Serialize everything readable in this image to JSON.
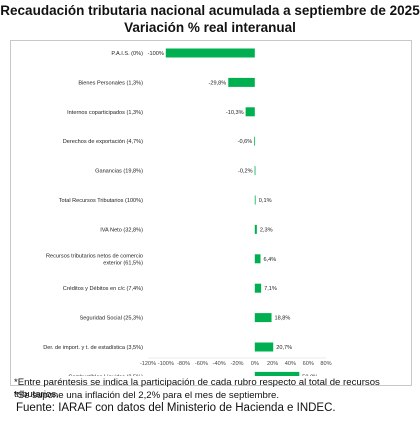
{
  "title_line1": "Recaudación tributaria nacional acumulada a septiembre de 2025",
  "title_line2": "Variación % real interanual",
  "chart_data": {
    "type": "bar",
    "orientation": "horizontal",
    "title": "Recaudación tributaria nacional acumulada a septiembre de 2025",
    "subtitle": "Variación % real interanual",
    "categories": [
      "P.A.I.S. (0%)",
      "Bienes Personales (1,3%)",
      "Internos coparticipados (1,3%)",
      "Derechos de exportación (4,7%)",
      "Ganancias (19,8%)",
      "Total Recursos Tributarios (100%)",
      "IVA Neto (32,8%)",
      "Recursos tributarios netos de comercio exterior (61,5%)",
      "Créditos y Débitos en c/c (7,4%)",
      "Seguridad Social (25,3%)",
      "Der. de import. y t. de estadística (3,5%)",
      "Combustibles Líquidos (2,5%)"
    ],
    "values": [
      -100,
      -29.8,
      -10.3,
      -0.6,
      -0.2,
      0.1,
      2.3,
      6.4,
      7.1,
      18.8,
      20.7,
      50.0
    ],
    "data_labels": [
      "-100%",
      "-29,8%",
      "-10,3%",
      "-0,6%",
      "-0,2%",
      "0,1%",
      "2,3%",
      "6,4%",
      "7,1%",
      "18,8%",
      "20,7%",
      "50,0%"
    ],
    "x_ticks": [
      "-120%",
      "-100%",
      "-80%",
      "-60%",
      "-40%",
      "-20%",
      "0%",
      "20%",
      "40%",
      "60%",
      "80%"
    ],
    "xlim": [
      -120,
      80
    ],
    "bar_color": "#00B050",
    "grid": false,
    "legend": "none"
  },
  "notes": [
    "*Entre paréntesis se indica la participación de cada rubro respecto al total de recursos tributarios.",
    "*Se supone una inflación del 2,2% para el mes de septiembre."
  ],
  "source": "Fuente: IARAF con datos del Ministerio de Hacienda e INDEC."
}
